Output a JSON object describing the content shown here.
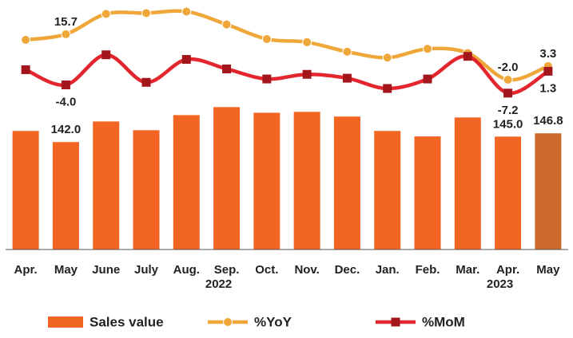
{
  "chart_data": {
    "type": "bar-line",
    "categories": [
      "Apr.",
      "May",
      "June",
      "July",
      "Aug.",
      "Sep.",
      "Oct.",
      "Nov.",
      "Dec.",
      "Jan.",
      "Feb.",
      "Mar.",
      "Apr.",
      "May"
    ],
    "x_group_labels": [
      {
        "label": "2022",
        "index": 5
      },
      {
        "label": "2023",
        "index": 12
      }
    ],
    "ylim": [
      83,
      220
    ],
    "y2lim": [
      -68,
      29
    ],
    "series": [
      {
        "name": "Sales value",
        "type": "bar",
        "color": "#f26522",
        "colors": [
          "#f26522",
          "#f26522",
          "#f26522",
          "#f26522",
          "#f26522",
          "#f26522",
          "#f26522",
          "#f26522",
          "#f26522",
          "#f26522",
          "#f26522",
          "#f26522",
          "#f26522",
          "#cb6a2c"
        ],
        "values": [
          148.1,
          142.0,
          153.3,
          148.5,
          156.8,
          161.2,
          158.1,
          158.6,
          156.0,
          148.1,
          145.1,
          155.5,
          145.0,
          146.8
        ],
        "value_labels": [
          null,
          "142.0",
          null,
          null,
          null,
          null,
          null,
          null,
          null,
          null,
          null,
          null,
          "145.0",
          "146.8"
        ],
        "label_position": "above"
      },
      {
        "name": "%YoY",
        "type": "line",
        "axis": "y2",
        "color": "#f0a73a",
        "marker": "circle",
        "values": [
          13.5,
          15.7,
          23.6,
          23.9,
          24.5,
          19.5,
          13.8,
          12.6,
          8.9,
          6.6,
          10.0,
          8.4,
          -2.0,
          3.3
        ],
        "value_labels": [
          null,
          "15.7",
          null,
          null,
          null,
          null,
          null,
          null,
          null,
          null,
          null,
          null,
          "-2.0",
          "3.3"
        ],
        "label_position": "above"
      },
      {
        "name": "%MoM",
        "type": "line",
        "axis": "y2",
        "color": "#e3262e",
        "marker_color": "#a3161c",
        "marker": "square",
        "values": [
          1.9,
          -4.0,
          7.7,
          -3.0,
          5.9,
          2.2,
          -1.7,
          0.1,
          -1.4,
          -5.4,
          -1.7,
          7.1,
          -7.2,
          1.3
        ],
        "value_labels": [
          null,
          "-4.0",
          null,
          null,
          null,
          null,
          null,
          null,
          null,
          null,
          null,
          null,
          "-7.2",
          "1.3"
        ],
        "label_position": "below"
      }
    ],
    "legend": "bottom"
  }
}
